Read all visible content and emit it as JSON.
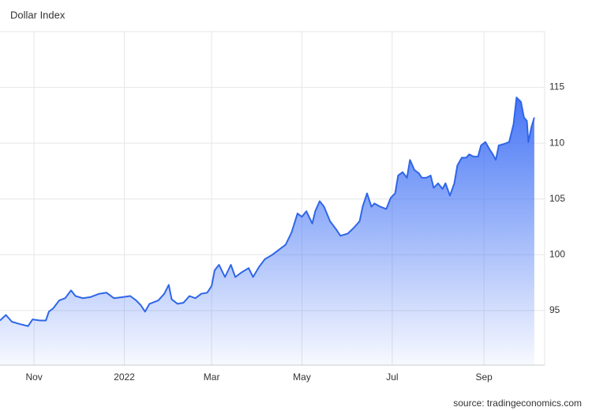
{
  "chart_data": {
    "type": "area",
    "title": "Dollar Index",
    "source": "source: tradingeconomics.com",
    "color": "#2f66e8",
    "grid": true,
    "x": [
      -23,
      -19,
      -15,
      -10,
      -4,
      -1,
      4,
      8,
      10,
      13,
      17,
      21,
      25,
      28,
      33,
      38,
      44,
      49,
      54,
      60,
      65,
      69,
      72,
      75,
      78,
      84,
      88,
      91,
      93,
      97,
      101,
      105,
      109,
      113,
      117,
      120,
      122,
      125,
      129,
      133,
      136,
      140,
      145,
      148,
      152,
      156,
      161,
      166,
      170,
      174,
      178,
      181,
      184,
      188,
      190,
      193,
      196,
      200,
      204,
      207,
      212,
      216,
      220,
      222,
      225,
      228,
      230,
      234,
      238,
      241,
      244,
      246,
      249,
      252,
      254,
      257,
      260,
      262,
      265,
      268,
      270,
      273,
      276,
      278,
      281,
      284,
      286,
      289,
      292,
      294,
      297,
      300,
      302,
      305,
      308,
      310,
      312,
      314,
      317,
      321,
      324,
      326,
      329,
      331,
      333,
      334,
      336,
      338
    ],
    "values": [
      94.1,
      94.6,
      94.0,
      93.8,
      93.6,
      94.2,
      94.1,
      94.1,
      94.9,
      95.2,
      95.9,
      96.1,
      96.8,
      96.3,
      96.1,
      96.2,
      96.5,
      96.6,
      96.1,
      96.2,
      96.3,
      95.9,
      95.5,
      94.9,
      95.6,
      95.9,
      96.5,
      97.3,
      96.0,
      95.6,
      95.7,
      96.3,
      96.1,
      96.5,
      96.6,
      97.2,
      98.6,
      99.1,
      98.0,
      99.1,
      98.0,
      98.4,
      98.8,
      98.0,
      98.9,
      99.6,
      100.0,
      100.5,
      100.9,
      102.0,
      103.7,
      103.4,
      103.9,
      102.8,
      103.9,
      104.8,
      104.3,
      103.0,
      102.3,
      101.7,
      101.9,
      102.4,
      103.0,
      104.3,
      105.5,
      104.3,
      104.6,
      104.3,
      104.1,
      105.1,
      105.5,
      107.1,
      107.4,
      106.9,
      108.5,
      107.6,
      107.3,
      106.9,
      106.9,
      107.1,
      106.0,
      106.4,
      105.9,
      106.4,
      105.3,
      106.4,
      108.0,
      108.7,
      108.7,
      109.0,
      108.8,
      108.8,
      109.8,
      110.1,
      109.4,
      109.0,
      108.5,
      109.8,
      109.9,
      110.1,
      111.7,
      114.1,
      113.7,
      112.3,
      112.0,
      110.1,
      111.4,
      112.3
    ],
    "xlim": [
      -23,
      345
    ],
    "xticks": [
      {
        "value": 0,
        "label": "Nov"
      },
      {
        "value": 61,
        "label": "2022"
      },
      {
        "value": 120,
        "label": "Mar"
      },
      {
        "value": 181,
        "label": "May"
      },
      {
        "value": 242,
        "label": "Jul"
      },
      {
        "value": 304,
        "label": "Sep"
      }
    ],
    "ylim": [
      90.1,
      120
    ],
    "yticks": [
      95,
      100,
      105,
      110,
      115
    ]
  }
}
